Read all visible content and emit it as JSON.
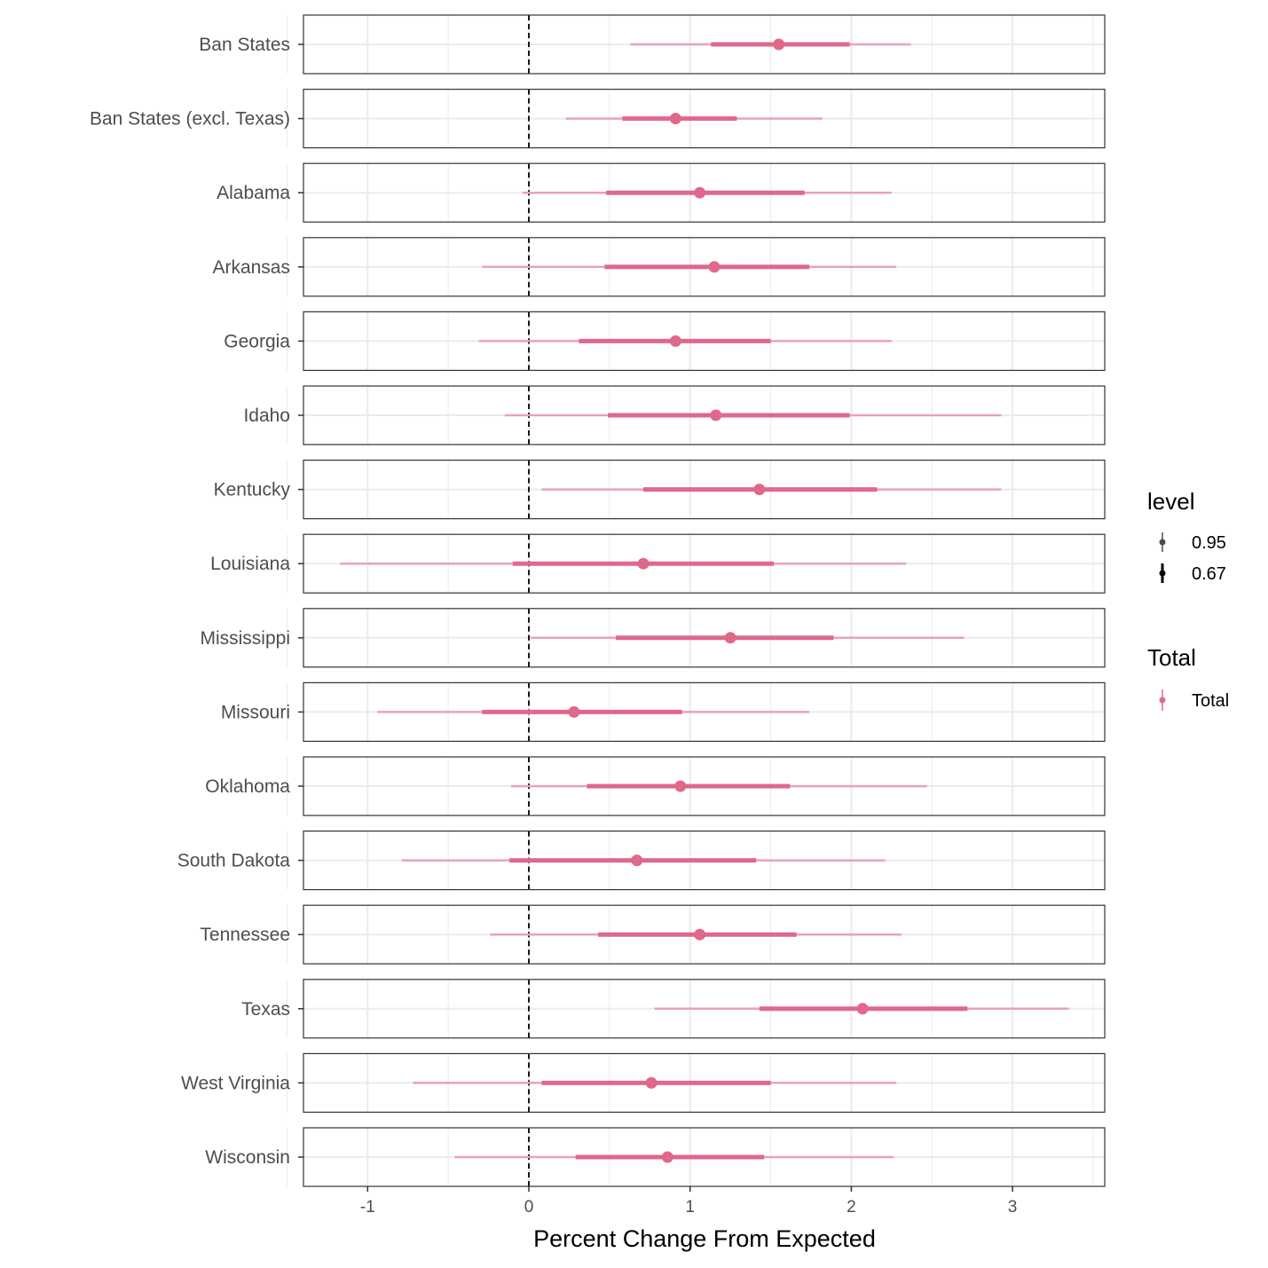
{
  "chart_data": {
    "type": "forest-pointrange",
    "xlabel": "Percent Change From Expected",
    "ylabel": "",
    "xlim": [
      -1.4,
      3.57
    ],
    "x_ticks": [
      -1,
      0,
      1,
      2,
      3
    ],
    "x_tick_labels": [
      "-1",
      "0",
      "1",
      "2",
      "3"
    ],
    "reference_line": 0,
    "grid": true,
    "colors": {
      "interval_67": "#e0688a",
      "interval_95": "#e8a3b6",
      "point": "#e0688a"
    },
    "legend": {
      "position": "right",
      "level_title": "level",
      "level_items": [
        "0.95",
        "0.67"
      ],
      "color_title": "Total",
      "color_items": [
        "Total"
      ]
    },
    "rows": [
      {
        "label": "Ban States",
        "point": 1.55,
        "lo95": 0.63,
        "hi95": 2.37,
        "lo67": 1.13,
        "hi67": 1.99
      },
      {
        "label": "Ban States (excl. Texas)",
        "point": 0.91,
        "lo95": 0.23,
        "hi95": 1.82,
        "lo67": 0.58,
        "hi67": 1.29
      },
      {
        "label": "Alabama",
        "point": 1.06,
        "lo95": -0.04,
        "hi95": 2.25,
        "lo67": 0.48,
        "hi67": 1.71
      },
      {
        "label": "Arkansas",
        "point": 1.15,
        "lo95": -0.29,
        "hi95": 2.28,
        "lo67": 0.47,
        "hi67": 1.74
      },
      {
        "label": "Georgia",
        "point": 0.91,
        "lo95": -0.31,
        "hi95": 2.25,
        "lo67": 0.31,
        "hi67": 1.5
      },
      {
        "label": "Idaho",
        "point": 1.16,
        "lo95": -0.15,
        "hi95": 2.93,
        "lo67": 0.49,
        "hi67": 1.99
      },
      {
        "label": "Kentucky",
        "point": 1.43,
        "lo95": 0.08,
        "hi95": 2.93,
        "lo67": 0.71,
        "hi67": 2.16
      },
      {
        "label": "Louisiana",
        "point": 0.71,
        "lo95": -1.17,
        "hi95": 2.34,
        "lo67": -0.1,
        "hi67": 1.52
      },
      {
        "label": "Mississippi",
        "point": 1.25,
        "lo95": 0.01,
        "hi95": 2.7,
        "lo67": 0.54,
        "hi67": 1.89
      },
      {
        "label": "Missouri",
        "point": 0.28,
        "lo95": -0.94,
        "hi95": 1.74,
        "lo67": -0.29,
        "hi67": 0.95
      },
      {
        "label": "Oklahoma",
        "point": 0.94,
        "lo95": -0.11,
        "hi95": 2.47,
        "lo67": 0.36,
        "hi67": 1.62
      },
      {
        "label": "South Dakota",
        "point": 0.67,
        "lo95": -0.79,
        "hi95": 2.21,
        "lo67": -0.12,
        "hi67": 1.41
      },
      {
        "label": "Tennessee",
        "point": 1.06,
        "lo95": -0.24,
        "hi95": 2.31,
        "lo67": 0.43,
        "hi67": 1.66
      },
      {
        "label": "Texas",
        "point": 2.07,
        "lo95": 0.78,
        "hi95": 3.35,
        "lo67": 1.43,
        "hi67": 2.72
      },
      {
        "label": "West Virginia",
        "point": 0.76,
        "lo95": -0.72,
        "hi95": 2.28,
        "lo67": 0.08,
        "hi67": 1.5
      },
      {
        "label": "Wisconsin",
        "point": 0.86,
        "lo95": -0.46,
        "hi95": 2.26,
        "lo67": 0.29,
        "hi67": 1.46
      }
    ]
  }
}
